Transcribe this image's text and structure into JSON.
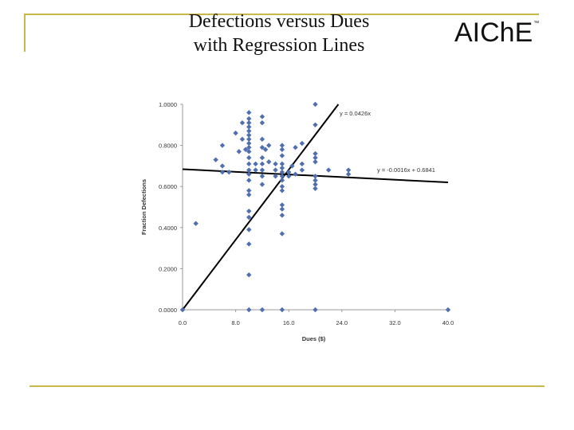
{
  "slide": {
    "title_line1": "Defections versus Dues",
    "title_line2": "with Regression Lines",
    "logo_text": "AIChE",
    "logo_mark": "™"
  },
  "colors": {
    "rule": "#c8b84a",
    "marker": "#4f6fae",
    "line": "#000000",
    "grid": "#d9d9d9"
  },
  "chart_data": {
    "type": "scatter",
    "xlabel": "Dues ($)",
    "ylabel": "Fraction Defections",
    "xlim": [
      0,
      40
    ],
    "ylim": [
      0,
      1
    ],
    "x_ticks": [
      "0.0",
      "8.0",
      "16.0",
      "24.0",
      "32.0",
      "40.0"
    ],
    "y_ticks": [
      "0.0000",
      "0.2000",
      "0.4000",
      "0.6000",
      "0.8000",
      "1.0000"
    ],
    "grid": "none",
    "points": [
      [
        0,
        0
      ],
      [
        2,
        0.42
      ],
      [
        5,
        0.73
      ],
      [
        6,
        0.8
      ],
      [
        6,
        0.7
      ],
      [
        6,
        0.67
      ],
      [
        7,
        0.67
      ],
      [
        8,
        0.86
      ],
      [
        8.5,
        0.77
      ],
      [
        9,
        0.91
      ],
      [
        9,
        0.83
      ],
      [
        9.5,
        0.78
      ],
      [
        10,
        0.96
      ],
      [
        10,
        0.93
      ],
      [
        10,
        0.91
      ],
      [
        10,
        0.89
      ],
      [
        10,
        0.87
      ],
      [
        10,
        0.85
      ],
      [
        10,
        0.83
      ],
      [
        10,
        0.81
      ],
      [
        10,
        0.79
      ],
      [
        10,
        0.77
      ],
      [
        10,
        0.74
      ],
      [
        10,
        0.71
      ],
      [
        10,
        0.68
      ],
      [
        10,
        0.66
      ],
      [
        10,
        0.63
      ],
      [
        10,
        0.58
      ],
      [
        10,
        0.56
      ],
      [
        10,
        0.48
      ],
      [
        10,
        0.45
      ],
      [
        10,
        0.39
      ],
      [
        10,
        0.32
      ],
      [
        10,
        0.17
      ],
      [
        10,
        0
      ],
      [
        11,
        0.71
      ],
      [
        11,
        0.68
      ],
      [
        12,
        0.94
      ],
      [
        12,
        0.91
      ],
      [
        12,
        0.83
      ],
      [
        12,
        0.79
      ],
      [
        12,
        0.74
      ],
      [
        12,
        0.71
      ],
      [
        12,
        0.68
      ],
      [
        12,
        0.65
      ],
      [
        12,
        0.61
      ],
      [
        12,
        0
      ],
      [
        12.5,
        0.78
      ],
      [
        13,
        0.8
      ],
      [
        13,
        0.72
      ],
      [
        14,
        0.71
      ],
      [
        14,
        0.68
      ],
      [
        14,
        0.65
      ],
      [
        15,
        0.8
      ],
      [
        15,
        0.78
      ],
      [
        15,
        0.75
      ],
      [
        15,
        0.71
      ],
      [
        15,
        0.69
      ],
      [
        15,
        0.67
      ],
      [
        15,
        0.65
      ],
      [
        15,
        0.63
      ],
      [
        15,
        0.6
      ],
      [
        15,
        0.58
      ],
      [
        15,
        0.51
      ],
      [
        15,
        0.49
      ],
      [
        15,
        0.46
      ],
      [
        15,
        0.37
      ],
      [
        15,
        0
      ],
      [
        16,
        0.67
      ],
      [
        16,
        0.65
      ],
      [
        16.5,
        0.7
      ],
      [
        17,
        0.79
      ],
      [
        17,
        0.66
      ],
      [
        18,
        0.81
      ],
      [
        18,
        0.71
      ],
      [
        18,
        0.68
      ],
      [
        20,
        1.0
      ],
      [
        20,
        0.9
      ],
      [
        20,
        0.76
      ],
      [
        20,
        0.74
      ],
      [
        20,
        0.72
      ],
      [
        20,
        0.65
      ],
      [
        20,
        0.63
      ],
      [
        20,
        0.61
      ],
      [
        20,
        0.59
      ],
      [
        20,
        0
      ],
      [
        22,
        0.68
      ],
      [
        25,
        0.68
      ],
      [
        25,
        0.66
      ],
      [
        40,
        0
      ]
    ],
    "series": [
      {
        "type": "line",
        "label": "y = 0.0426x",
        "slope": 0.0426,
        "intercept": 0
      },
      {
        "type": "line",
        "label": "y = -0.0016x + 0.6841",
        "slope": -0.0016,
        "intercept": 0.6841
      }
    ]
  }
}
